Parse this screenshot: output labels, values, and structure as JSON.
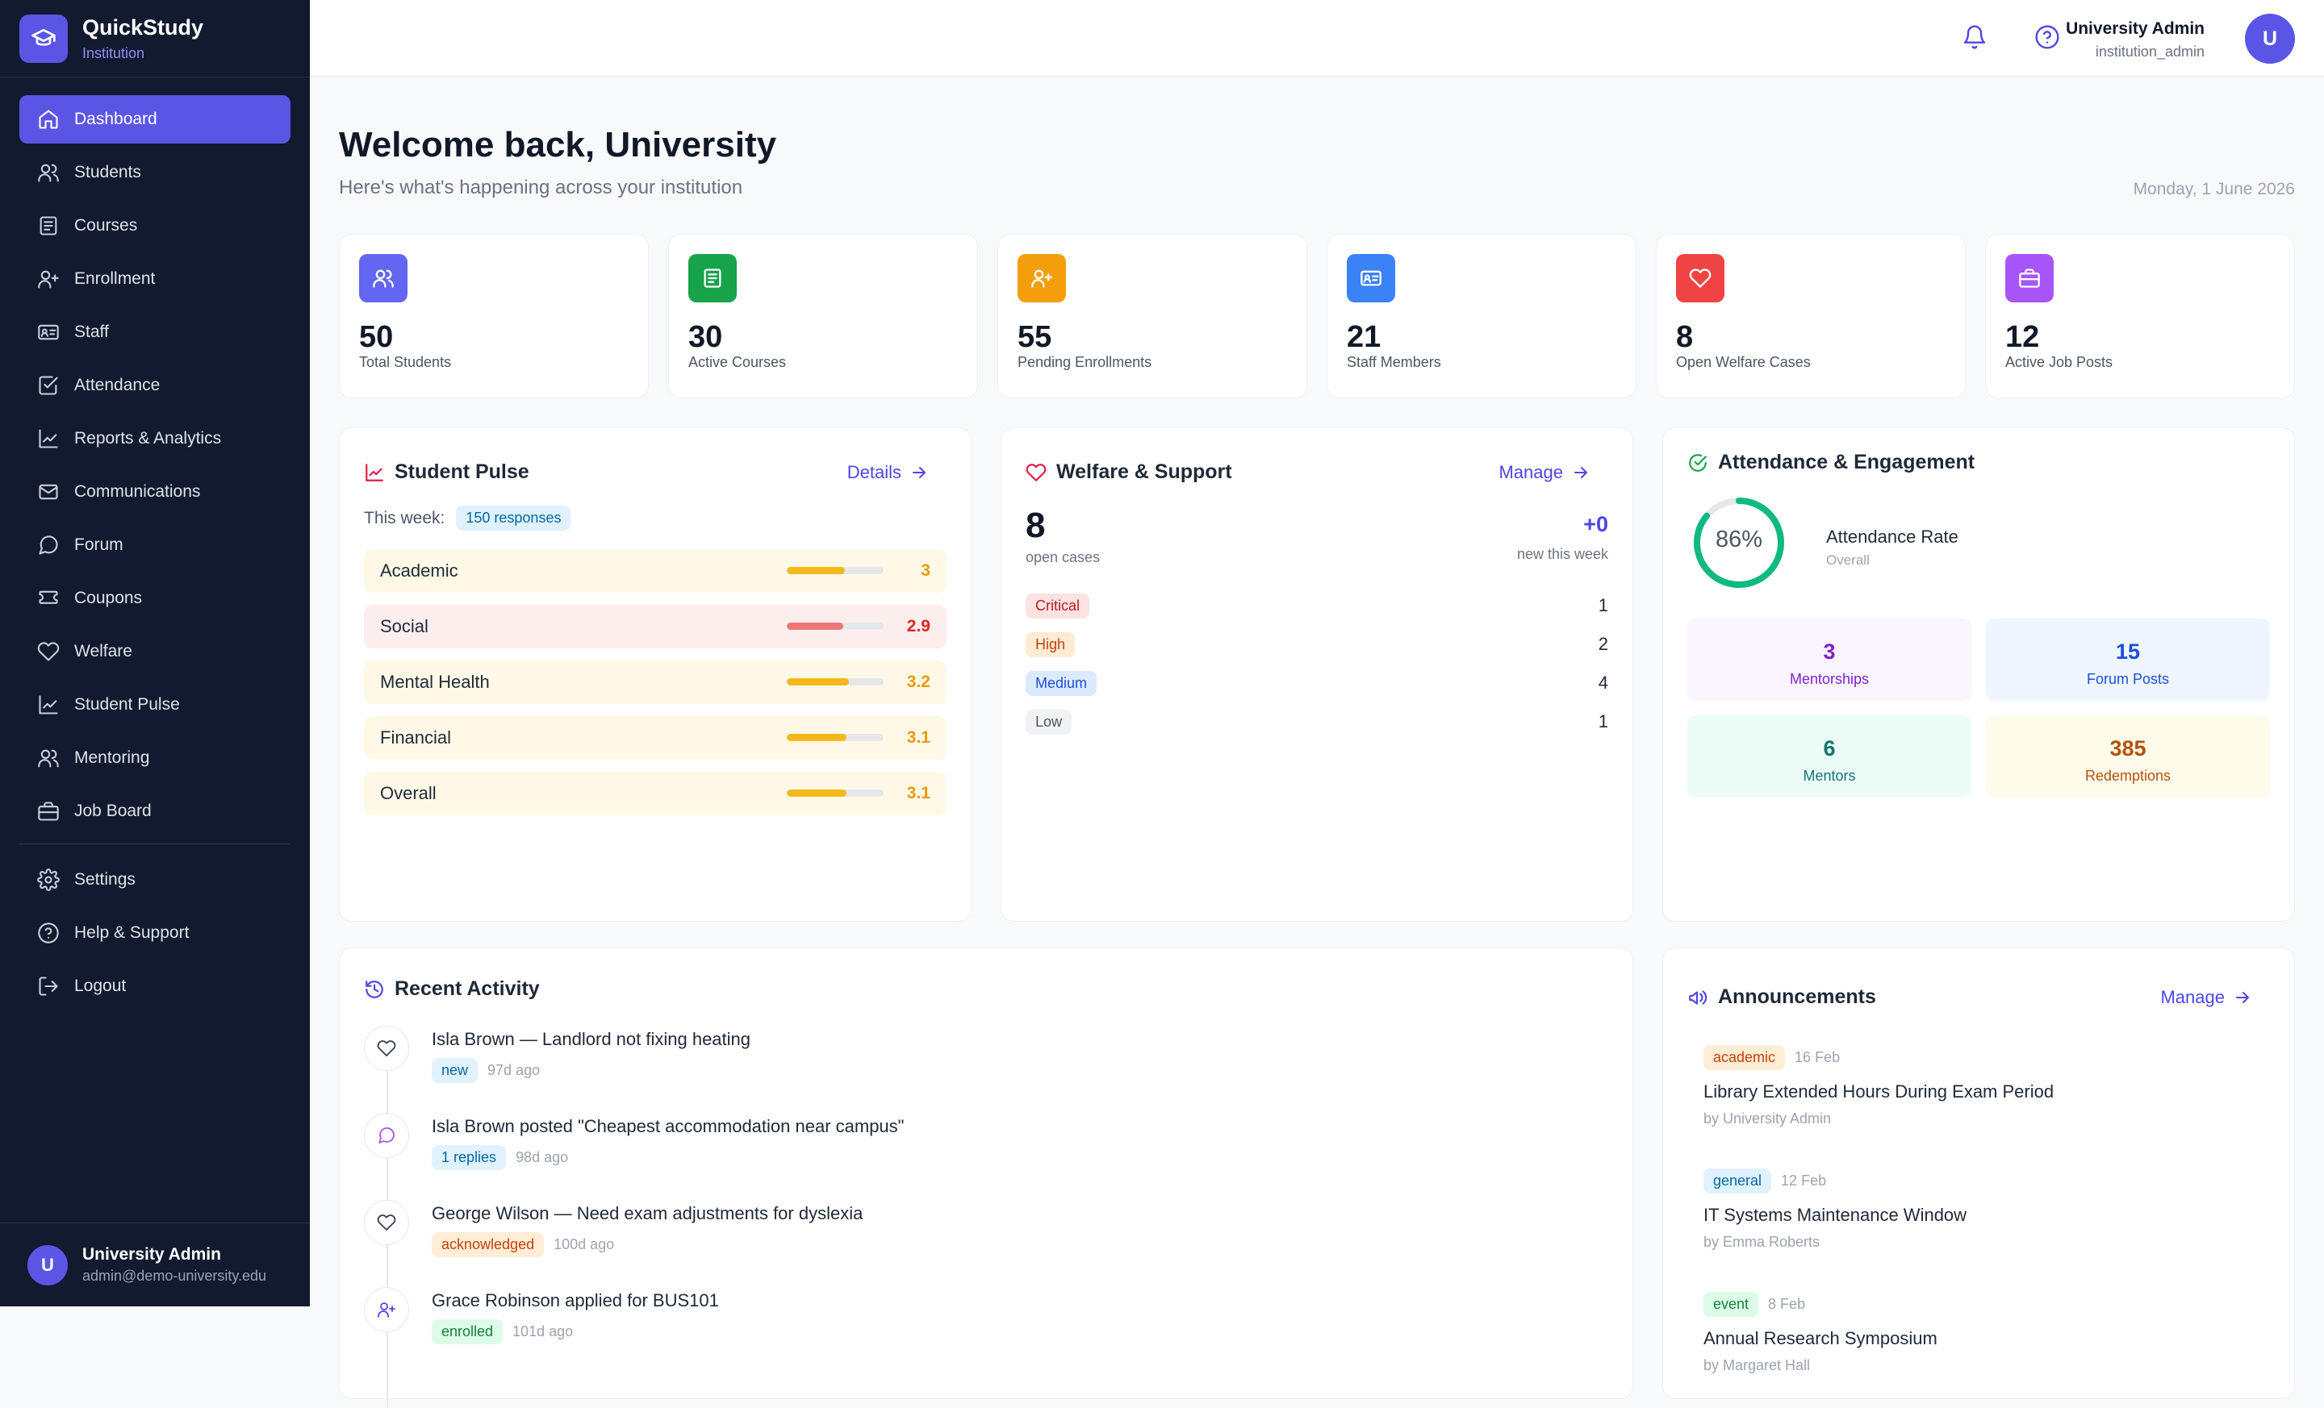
{
  "brand": {
    "name": "QuickStudy",
    "sub": "Institution"
  },
  "nav": [
    {
      "label": "Dashboard",
      "icon": "home-icon"
    },
    {
      "label": "Students",
      "icon": "users-icon"
    },
    {
      "label": "Courses",
      "icon": "book-icon"
    },
    {
      "label": "Enrollment",
      "icon": "user-plus-icon"
    },
    {
      "label": "Staff",
      "icon": "id-card-icon"
    },
    {
      "label": "Attendance",
      "icon": "check-square-icon"
    },
    {
      "label": "Reports & Analytics",
      "icon": "chart-icon"
    },
    {
      "label": "Communications",
      "icon": "mail-icon"
    },
    {
      "label": "Forum",
      "icon": "chat-icon"
    },
    {
      "label": "Coupons",
      "icon": "ticket-icon"
    },
    {
      "label": "Welfare",
      "icon": "heart-icon"
    },
    {
      "label": "Student Pulse",
      "icon": "pulse-icon"
    },
    {
      "label": "Mentoring",
      "icon": "mentor-icon"
    },
    {
      "label": "Job Board",
      "icon": "briefcase-icon"
    }
  ],
  "nav_bottom": [
    {
      "label": "Settings",
      "icon": "gear-icon"
    },
    {
      "label": "Help & Support",
      "icon": "help-icon"
    },
    {
      "label": "Logout",
      "icon": "logout-icon"
    }
  ],
  "side_user": {
    "initial": "U",
    "name": "University Admin",
    "email": "admin@demo-university.edu"
  },
  "topbar": {
    "name": "University Admin",
    "role": "institution_admin",
    "initial": "U"
  },
  "header": {
    "title": "Welcome back, University",
    "subtitle": "Here's what's happening across your institution",
    "date": "Monday, 1 June 2026"
  },
  "stats": [
    {
      "value": "50",
      "label": "Total Students",
      "color": "#6366f1",
      "icon": "users-icon"
    },
    {
      "value": "30",
      "label": "Active Courses",
      "color": "#16a34a",
      "icon": "book-icon"
    },
    {
      "value": "55",
      "label": "Pending Enrollments",
      "color": "#f59e0b",
      "icon": "user-plus-icon"
    },
    {
      "value": "21",
      "label": "Staff Members",
      "color": "#3b82f6",
      "icon": "id-card-icon"
    },
    {
      "value": "8",
      "label": "Open Welfare Cases",
      "color": "#ef4444",
      "icon": "heart-icon"
    },
    {
      "value": "12",
      "label": "Active Job Posts",
      "color": "#a855f7",
      "icon": "briefcase-icon"
    }
  ],
  "pulse": {
    "title": "Student Pulse",
    "link": "Details",
    "week_label": "This week:",
    "responses": "150 responses",
    "rows": [
      {
        "label": "Academic",
        "value": "3",
        "fraction": 0.6,
        "bg": "#fef9e7",
        "bar": "#f5b81c",
        "text": "#e89a0c"
      },
      {
        "label": "Social",
        "value": "2.9",
        "fraction": 0.58,
        "bg": "#fdeeee",
        "bar": "#f07575",
        "text": "#dc2626"
      },
      {
        "label": "Mental Health",
        "value": "3.2",
        "fraction": 0.64,
        "bg": "#fef9e7",
        "bar": "#f5b81c",
        "text": "#e89a0c"
      },
      {
        "label": "Financial",
        "value": "3.1",
        "fraction": 0.62,
        "bg": "#fef9e7",
        "bar": "#f5b81c",
        "text": "#e89a0c"
      },
      {
        "label": "Overall",
        "value": "3.1",
        "fraction": 0.62,
        "bg": "#fef9e7",
        "bar": "#f5b81c",
        "text": "#e89a0c"
      }
    ]
  },
  "welfare": {
    "title": "Welfare & Support",
    "link": "Manage",
    "open_count": "8",
    "open_label": "open cases",
    "new_count": "+0",
    "new_label": "new this week",
    "levels": [
      {
        "label": "Critical",
        "count": "1",
        "bg": "#fde2e2",
        "fg": "#b91c1c"
      },
      {
        "label": "High",
        "count": "2",
        "bg": "#fdebd3",
        "fg": "#c2410c"
      },
      {
        "label": "Medium",
        "count": "4",
        "bg": "#dbeafe",
        "fg": "#1d4ed8"
      },
      {
        "label": "Low",
        "count": "1",
        "bg": "#f1f2f4",
        "fg": "#4b5563"
      }
    ]
  },
  "attendance": {
    "title": "Attendance & Engagement",
    "rate": "86%",
    "rate_fraction": 0.86,
    "rate_label": "Attendance Rate",
    "rate_sub": "Overall",
    "tiles": [
      {
        "value": "3",
        "label": "Mentorships",
        "bg": "#faf5ff",
        "fg": "#7e22ce"
      },
      {
        "value": "15",
        "label": "Forum Posts",
        "bg": "#eff6ff",
        "fg": "#1d4ed8"
      },
      {
        "value": "6",
        "label": "Mentors",
        "bg": "#ecfdf8",
        "fg": "#0f766e"
      },
      {
        "value": "385",
        "label": "Redemptions",
        "bg": "#fffbeb",
        "fg": "#b45309"
      }
    ]
  },
  "activity": {
    "title": "Recent Activity",
    "items": [
      {
        "icon": "heart-icon",
        "text": "Isla Brown — Landlord not fixing heating",
        "tag": "new",
        "tag_bg": "#e0f2fe",
        "tag_fg": "#0369a1",
        "time": "97d ago"
      },
      {
        "icon": "chat-icon",
        "text": "Isla Brown posted \"Cheapest accommodation near campus\"",
        "tag": "1 replies",
        "tag_bg": "#e0f2fe",
        "tag_fg": "#0369a1",
        "time": "98d ago"
      },
      {
        "icon": "heart-icon",
        "text": "George Wilson — Need exam adjustments for dyslexia",
        "tag": "acknowledged",
        "tag_bg": "#ffedd5",
        "tag_fg": "#c2410c",
        "time": "100d ago"
      },
      {
        "icon": "user-plus-icon",
        "text": "Grace Robinson applied for BUS101",
        "tag": "enrolled",
        "tag_bg": "#dcfce7",
        "tag_fg": "#15803d",
        "time": "101d ago"
      }
    ]
  },
  "announcements": {
    "title": "Announcements",
    "link": "Manage",
    "items": [
      {
        "tag": "academic",
        "tag_bg": "#ffedd5",
        "tag_fg": "#c2410c",
        "date": "16 Feb",
        "title": "Library Extended Hours During Exam Period",
        "by": "by University Admin"
      },
      {
        "tag": "general",
        "tag_bg": "#e0f2fe",
        "tag_fg": "#0369a1",
        "date": "12 Feb",
        "title": "IT Systems Maintenance Window",
        "by": "by Emma Roberts"
      },
      {
        "tag": "event",
        "tag_bg": "#dcfce7",
        "tag_fg": "#15803d",
        "date": "8 Feb",
        "title": "Annual Research Symposium",
        "by": "by Margaret Hall"
      }
    ]
  }
}
